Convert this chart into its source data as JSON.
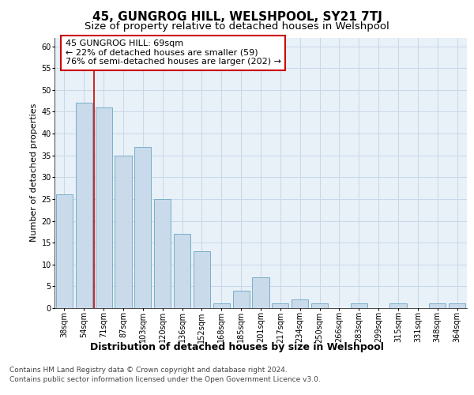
{
  "title": "45, GUNGROG HILL, WELSHPOOL, SY21 7TJ",
  "subtitle": "Size of property relative to detached houses in Welshpool",
  "xlabel": "Distribution of detached houses by size in Welshpool",
  "ylabel": "Number of detached properties",
  "categories": [
    "38sqm",
    "54sqm",
    "71sqm",
    "87sqm",
    "103sqm",
    "120sqm",
    "136sqm",
    "152sqm",
    "168sqm",
    "185sqm",
    "201sqm",
    "217sqm",
    "234sqm",
    "250sqm",
    "266sqm",
    "283sqm",
    "299sqm",
    "315sqm",
    "331sqm",
    "348sqm",
    "364sqm"
  ],
  "values": [
    26,
    47,
    46,
    35,
    37,
    25,
    17,
    13,
    1,
    4,
    7,
    1,
    2,
    1,
    0,
    1,
    0,
    1,
    0,
    1,
    1
  ],
  "bar_color": "#c9daea",
  "bar_edge_color": "#7aafc8",
  "bar_edge_width": 0.7,
  "vline_x_index": 1.5,
  "vline_color": "#cc0000",
  "annotation_text": "45 GUNGROG HILL: 69sqm\n← 22% of detached houses are smaller (59)\n76% of semi-detached houses are larger (202) →",
  "annotation_box_color": "#ffffff",
  "annotation_box_edge": "#cc0000",
  "ylim": [
    0,
    62
  ],
  "yticks": [
    0,
    5,
    10,
    15,
    20,
    25,
    30,
    35,
    40,
    45,
    50,
    55,
    60
  ],
  "grid_color": "#c8d8e8",
  "bg_color": "#e8f0f8",
  "footer_line1": "Contains HM Land Registry data © Crown copyright and database right 2024.",
  "footer_line2": "Contains public sector information licensed under the Open Government Licence v3.0.",
  "title_fontsize": 11,
  "subtitle_fontsize": 9.5,
  "ylabel_fontsize": 8,
  "xlabel_fontsize": 9,
  "tick_fontsize": 7,
  "annotation_fontsize": 8,
  "footer_fontsize": 6.5
}
